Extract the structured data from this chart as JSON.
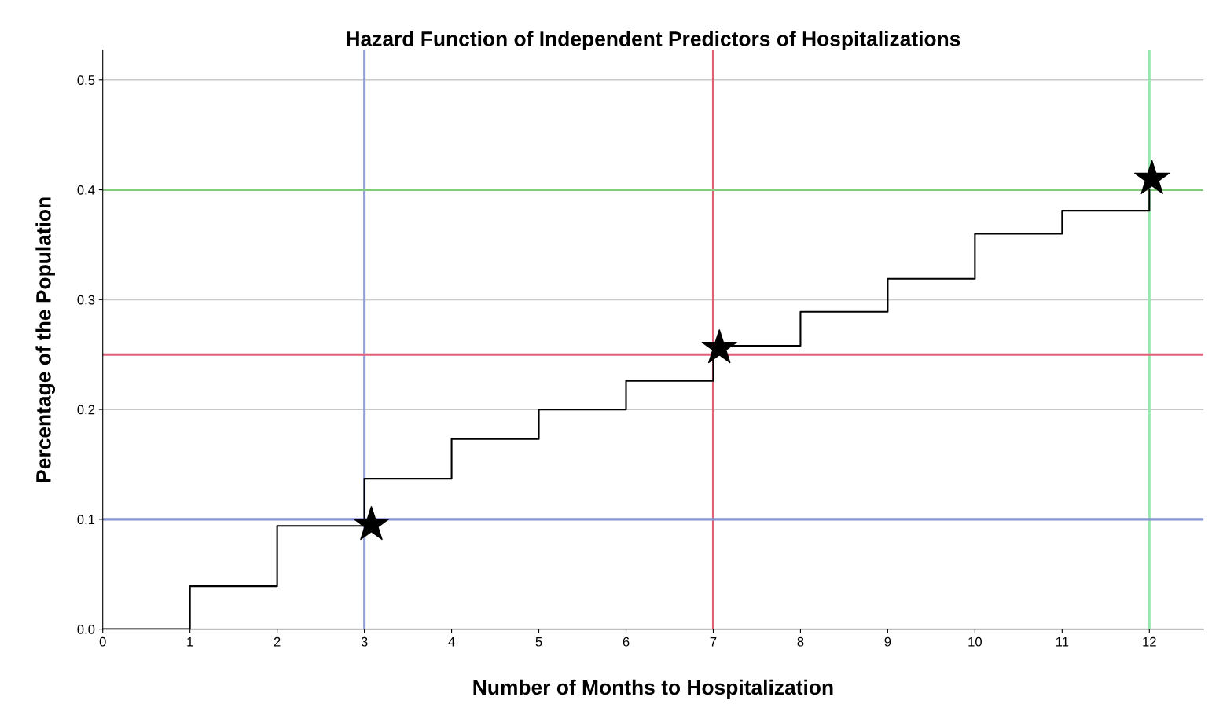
{
  "chart_data": {
    "type": "step",
    "title": "Hazard Function of Independent Predictors of Hospitalizations",
    "xlabel": "Number of Months to Hospitalization",
    "ylabel": "Percentage of the Population",
    "series": [
      {
        "type": "step",
        "color": "#000000",
        "x": [
          0,
          1,
          2,
          3,
          4,
          5,
          6,
          7,
          8,
          9,
          10,
          11,
          12
        ],
        "values": [
          0.0,
          0.039,
          0.094,
          0.137,
          0.173,
          0.2,
          0.226,
          0.258,
          0.289,
          0.319,
          0.36,
          0.381,
          0.4
        ]
      },
      {
        "type": "scatter",
        "color": "#000000",
        "marker": "star",
        "x": [
          3.08,
          7.07,
          12.03
        ],
        "values": [
          0.095,
          0.256,
          0.41
        ]
      }
    ],
    "xlim": [
      0,
      12.62
    ],
    "xticks": [
      0,
      1,
      2,
      3,
      4,
      5,
      6,
      7,
      8,
      9,
      10,
      11,
      12
    ],
    "ylim": [
      0,
      0.527
    ],
    "yticks": [
      {
        "value": 0,
        "label": "0.0"
      },
      0.1,
      0.2,
      0.3,
      0.4,
      0.5
    ],
    "grid": "y",
    "ref_lines": [
      {
        "axis": "y",
        "value": 0.4,
        "color": "#85c97f"
      },
      {
        "axis": "y",
        "value": 0.25,
        "color": "#e0607a"
      },
      {
        "axis": "y",
        "value": 0.1,
        "color": "#8795d4"
      },
      {
        "axis": "x",
        "value": 3,
        "color": "#95a0d8"
      },
      {
        "axis": "x",
        "value": 7,
        "color": "#e0607a"
      },
      {
        "axis": "x",
        "value": 12,
        "color": "#96e8ad"
      }
    ]
  }
}
